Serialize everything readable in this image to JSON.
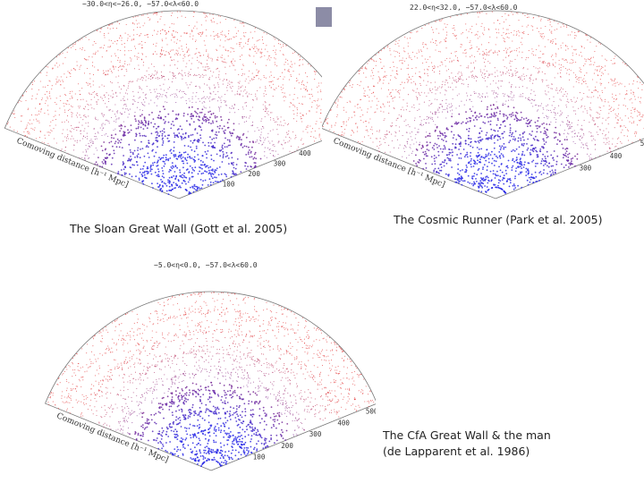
{
  "slide": {
    "panels": [
      {
        "header": "−30.0<η<−26.0,  −57.0<λ<60.0",
        "axis_title": "Comoving distance [h⁻¹ Mpc]",
        "ticks": [
          "100",
          "200",
          "300",
          "400",
          "500",
          "600"
        ],
        "caption": "The Sloan Great Wall (Gott et al. 2005)"
      },
      {
        "header": "22.0<η<32.0,  −57.0<λ<60.0",
        "axis_title": "Comoving distance [h⁻¹ Mpc]",
        "ticks": [
          "300",
          "400",
          "500"
        ],
        "caption": "The Cosmic Runner (Park et al. 2005)"
      },
      {
        "header": "−5.0<η<0.0,  −57.0<λ<60.0",
        "axis_title": "Comoving distance [h⁻¹ Mpc]",
        "ticks": [
          "100",
          "200",
          "300",
          "400",
          "500"
        ],
        "caption_line1": "The CfA Great Wall & the man",
        "caption_line2": "(de Lapparent et al. 1986)"
      }
    ],
    "colors": {
      "far": "#e23030",
      "near": "#2a2ae6",
      "grid": "#9a9a9a"
    }
  }
}
